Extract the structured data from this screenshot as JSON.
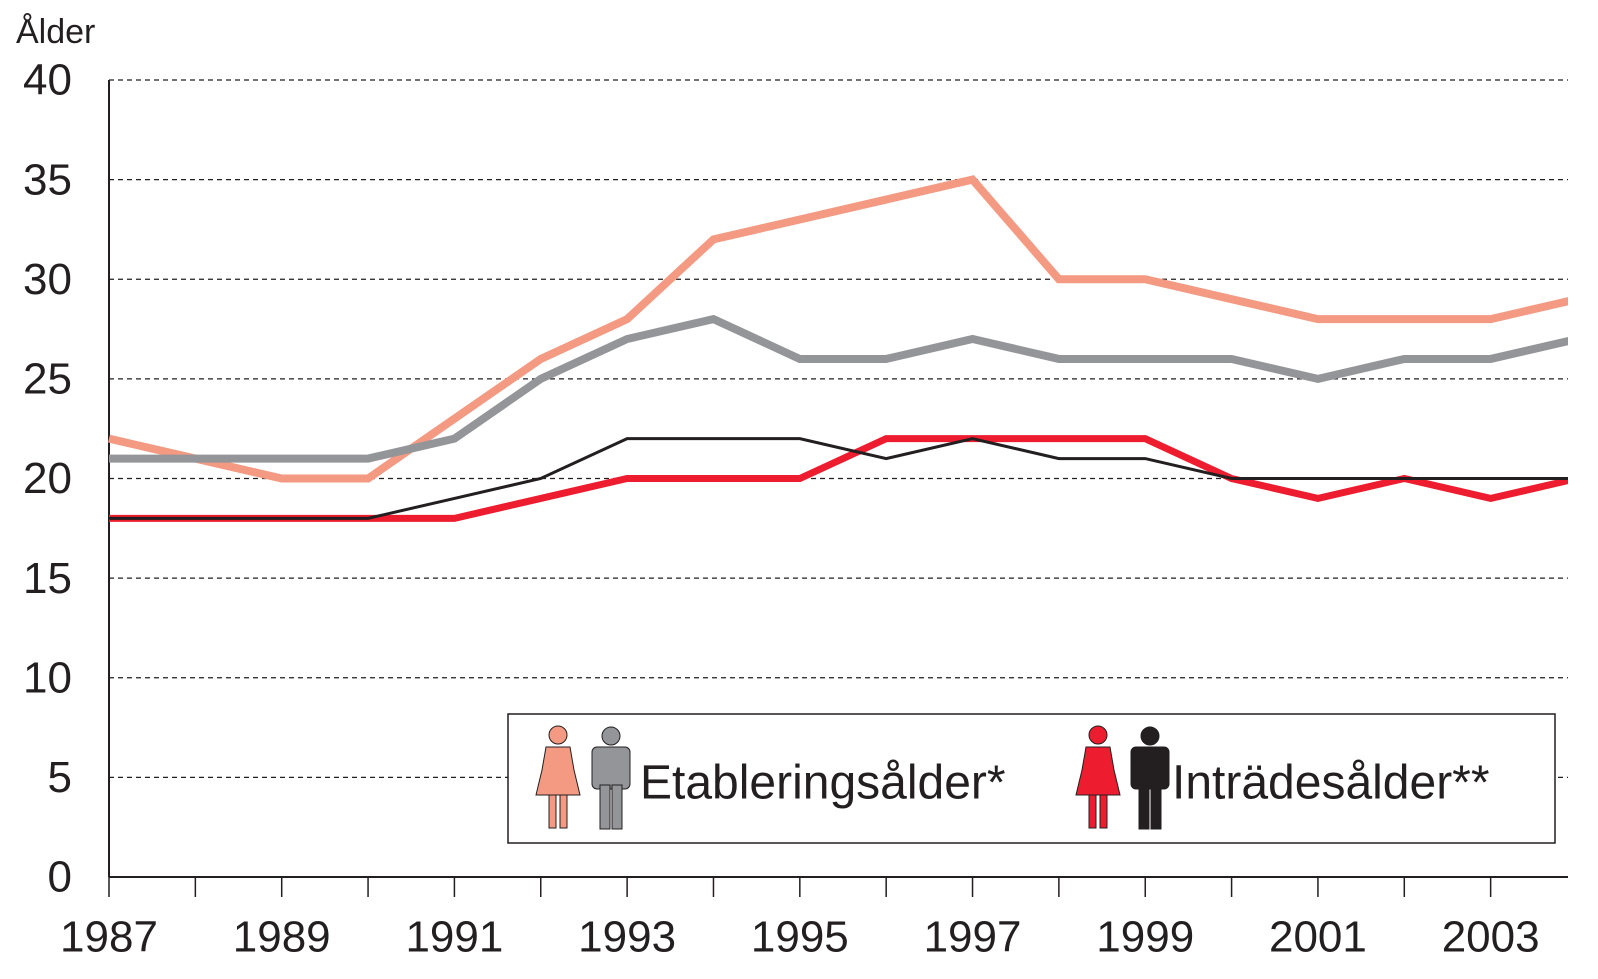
{
  "chart_data": {
    "type": "line",
    "y_label": "Ålder",
    "x": [
      1987,
      1988,
      1989,
      1990,
      1991,
      1992,
      1993,
      1994,
      1995,
      1996,
      1997,
      1998,
      1999,
      2000,
      2001,
      2002,
      2003,
      2004
    ],
    "series": [
      {
        "color": "#f49a82",
        "width": 8,
        "values": [
          22,
          21,
          20,
          20,
          23,
          26,
          28,
          32,
          33,
          34,
          35,
          30,
          30,
          29,
          28,
          28,
          28,
          29
        ]
      },
      {
        "color": "#939598",
        "width": 8,
        "values": [
          21,
          21,
          21,
          21,
          22,
          25,
          27,
          28,
          26,
          26,
          27,
          26,
          26,
          26,
          25,
          26,
          26,
          27
        ]
      },
      {
        "color": "#ed1c2e",
        "width": 7,
        "values": [
          18,
          18,
          18,
          18,
          18,
          19,
          20,
          20,
          20,
          22,
          22,
          22,
          22,
          20,
          19,
          20,
          19,
          20
        ]
      },
      {
        "color": "#231f20",
        "width": 3,
        "values": [
          18,
          18,
          18,
          18,
          19,
          20,
          22,
          22,
          22,
          21,
          22,
          21,
          21,
          20,
          20,
          20,
          20,
          20
        ]
      }
    ],
    "legend": [
      {
        "label": "Etableringsålder*",
        "colors": [
          "#f49a82",
          "#939598"
        ]
      },
      {
        "label": "Inträdesålder**",
        "colors": [
          "#ed1c2e",
          "#231f20"
        ]
      }
    ],
    "xlim": [
      1987,
      2004
    ],
    "xticks": [
      1987,
      1989,
      1991,
      1993,
      1995,
      1997,
      1999,
      2001,
      2003
    ],
    "minor_xticks": [
      1988,
      1990,
      1992,
      1994,
      1996,
      1998,
      2000,
      2002,
      2004
    ],
    "ylim": [
      0,
      40
    ],
    "yticks": [
      0,
      5,
      10,
      15,
      20,
      25,
      30,
      35,
      40
    ],
    "grid": true
  }
}
